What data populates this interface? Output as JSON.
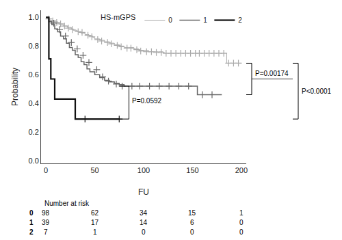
{
  "chart_data": {
    "type": "step",
    "xlabel": "FU",
    "ylabel": "Probability",
    "xlim": [
      -5,
      205
    ],
    "ylim": [
      -0.02,
      1.05
    ],
    "xticks": [
      0,
      50,
      100,
      150,
      200
    ],
    "yticks": [
      {
        "value": 0.0,
        "label": "0.0"
      },
      0.2,
      0.4,
      0.6,
      0.8,
      {
        "value": 1.0,
        "label": "1.0"
      }
    ],
    "grid": false,
    "legend": "upper right",
    "legend_title": "HS-mGPS",
    "marker": "cross",
    "series": [
      {
        "name": "0",
        "color": "#aaaaaa",
        "x": [
          0,
          2,
          4,
          6,
          8,
          10,
          12,
          14,
          16,
          18,
          20,
          22,
          24,
          26,
          28,
          30,
          32,
          34,
          36,
          38,
          40,
          42,
          44,
          46,
          48,
          50,
          55,
          60,
          65,
          70,
          75,
          80,
          85,
          90,
          95,
          100,
          105,
          110,
          115,
          120,
          125,
          130,
          135,
          140,
          145,
          150,
          155,
          160,
          165,
          170,
          175,
          180,
          185,
          190,
          195,
          200
        ],
        "values": [
          1.0,
          0.99,
          0.98,
          0.98,
          0.97,
          0.97,
          0.96,
          0.95,
          0.95,
          0.94,
          0.94,
          0.93,
          0.93,
          0.92,
          0.91,
          0.91,
          0.9,
          0.9,
          0.89,
          0.89,
          0.88,
          0.88,
          0.87,
          0.87,
          0.86,
          0.85,
          0.84,
          0.83,
          0.82,
          0.81,
          0.8,
          0.79,
          0.79,
          0.78,
          0.77,
          0.77,
          0.76,
          0.76,
          0.76,
          0.75,
          0.75,
          0.75,
          0.75,
          0.75,
          0.75,
          0.75,
          0.75,
          0.75,
          0.75,
          0.75,
          0.75,
          0.75,
          0.68,
          0.68,
          0.68,
          0.68
        ],
        "censor_x": [
          3,
          7,
          11,
          15,
          19,
          23,
          27,
          33,
          37,
          43,
          47,
          53,
          57,
          63,
          67,
          73,
          77,
          83,
          87,
          93,
          97,
          103,
          108,
          113,
          118,
          123,
          128,
          133,
          138,
          143,
          148,
          153,
          157,
          162,
          167,
          172,
          177,
          182,
          187,
          192,
          197
        ],
        "censor_values": [
          0.99,
          0.975,
          0.965,
          0.955,
          0.94,
          0.925,
          0.915,
          0.9,
          0.895,
          0.875,
          0.865,
          0.845,
          0.835,
          0.825,
          0.815,
          0.805,
          0.795,
          0.785,
          0.785,
          0.775,
          0.765,
          0.76,
          0.76,
          0.755,
          0.755,
          0.75,
          0.75,
          0.75,
          0.75,
          0.75,
          0.75,
          0.75,
          0.75,
          0.75,
          0.75,
          0.75,
          0.75,
          0.75,
          0.68,
          0.68,
          0.68
        ]
      },
      {
        "name": "1",
        "color": "#666666",
        "x": [
          0,
          3,
          6,
          9,
          12,
          15,
          18,
          21,
          24,
          27,
          30,
          33,
          36,
          39,
          42,
          45,
          50,
          55,
          60,
          65,
          70,
          75,
          80,
          85,
          90,
          95,
          100,
          110,
          120,
          130,
          140,
          150,
          155,
          160,
          170,
          180
        ],
        "values": [
          1.0,
          0.97,
          0.95,
          0.92,
          0.9,
          0.87,
          0.85,
          0.82,
          0.79,
          0.77,
          0.74,
          0.72,
          0.69,
          0.67,
          0.64,
          0.62,
          0.6,
          0.58,
          0.56,
          0.55,
          0.54,
          0.53,
          0.52,
          0.52,
          0.52,
          0.52,
          0.52,
          0.52,
          0.52,
          0.52,
          0.52,
          0.52,
          0.46,
          0.46,
          0.46,
          0.46
        ],
        "censor_x": [
          8,
          14,
          20,
          26,
          32,
          38,
          44,
          52,
          58,
          64,
          72,
          78,
          88,
          96,
          106,
          116,
          126,
          136,
          146,
          160,
          170
        ],
        "censor_values": [
          0.96,
          0.915,
          0.87,
          0.825,
          0.78,
          0.735,
          0.685,
          0.635,
          0.585,
          0.555,
          0.535,
          0.52,
          0.52,
          0.52,
          0.52,
          0.52,
          0.52,
          0.52,
          0.52,
          0.46,
          0.46
        ]
      },
      {
        "name": "2",
        "color": "#111111",
        "x": [
          0,
          3,
          5,
          7,
          9,
          11,
          13,
          20,
          25,
          30,
          35,
          40,
          50,
          75
        ],
        "values": [
          1.0,
          0.71,
          0.57,
          0.57,
          0.43,
          0.43,
          0.43,
          0.43,
          0.43,
          0.29,
          0.29,
          0.29,
          0.29,
          0.29
        ],
        "censor_x": [
          40,
          75
        ],
        "censor_values": [
          0.29,
          0.29
        ]
      }
    ],
    "annotations": [
      {
        "text": "P=0.0592",
        "x1": 75,
        "x2": 85,
        "ytop": 0.52,
        "ybot": 0.29,
        "x": 87,
        "y": 0.415
      },
      {
        "text": "P=0.00174",
        "ytop": 0.68,
        "ybot": 0.46
      },
      {
        "text": "P<0.0001",
        "ytop": 0.68,
        "ybot": 0.29
      }
    ],
    "at_risk": {
      "title": "Number at risk",
      "labels": [
        "0",
        "1",
        "2"
      ],
      "times": [
        0,
        50,
        100,
        150,
        200
      ],
      "values": [
        [
          98,
          62,
          34,
          15,
          1
        ],
        [
          39,
          17,
          14,
          6,
          0
        ],
        [
          7,
          1,
          0,
          0,
          0
        ]
      ]
    }
  }
}
